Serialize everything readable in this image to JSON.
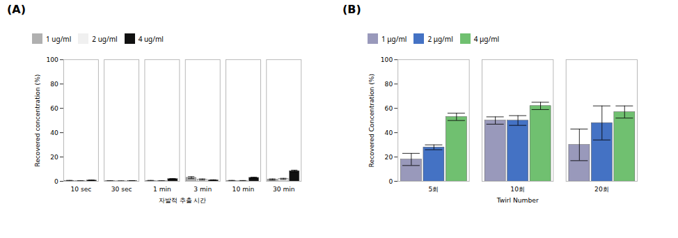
{
  "chart_data": [
    {
      "type": "bar",
      "title": "(A)",
      "xlabel": "자발적 추출 시간",
      "ylabel": "Recovered concentration (%)",
      "categories": [
        "10 sec",
        "30 sec",
        "1 min",
        "3 min",
        "10 min",
        "30 min"
      ],
      "series": [
        {
          "name": "1 ug/ml",
          "color": "#b0b0b0",
          "values": [
            0.5,
            0.3,
            0.5,
            3.0,
            0.5,
            1.5
          ],
          "errors": [
            0.3,
            0.2,
            0.3,
            0.8,
            0.3,
            0.5
          ]
        },
        {
          "name": "2 ug/ml",
          "color": "#f0f0f0",
          "values": [
            0.3,
            0.2,
            0.3,
            1.5,
            0.4,
            2.0
          ],
          "errors": [
            0.2,
            0.2,
            0.2,
            0.5,
            0.3,
            0.5
          ]
        },
        {
          "name": "4 ug/ml",
          "color": "#111111",
          "values": [
            0.8,
            0.4,
            2.0,
            1.0,
            3.0,
            8.5
          ],
          "errors": [
            0.3,
            0.2,
            0.3,
            0.3,
            0.4,
            0.7
          ]
        }
      ],
      "ylim": [
        0,
        100
      ],
      "yticks": [
        0,
        20,
        40,
        60,
        80,
        100
      ],
      "grid": false,
      "legend": "upper left"
    },
    {
      "type": "bar",
      "title": "(B)",
      "xlabel": "Twirl Number",
      "ylabel": "Recovered Concentration (%)",
      "categories": [
        "5회",
        "10회",
        "20회"
      ],
      "series": [
        {
          "name": "1 μg/ml",
          "color": "#9999bb",
          "values": [
            18,
            50,
            30
          ],
          "errors": [
            5,
            3,
            13
          ]
        },
        {
          "name": "2 μg/ml",
          "color": "#4472c4",
          "values": [
            28,
            50,
            48
          ],
          "errors": [
            2,
            4,
            14
          ]
        },
        {
          "name": "4 μg/ml",
          "color": "#70c070",
          "values": [
            53,
            62,
            57
          ],
          "errors": [
            3,
            3,
            5
          ]
        }
      ],
      "ylim": [
        0,
        100
      ],
      "yticks": [
        0,
        20,
        40,
        60,
        80,
        100
      ],
      "grid": false,
      "legend": "upper left"
    }
  ]
}
